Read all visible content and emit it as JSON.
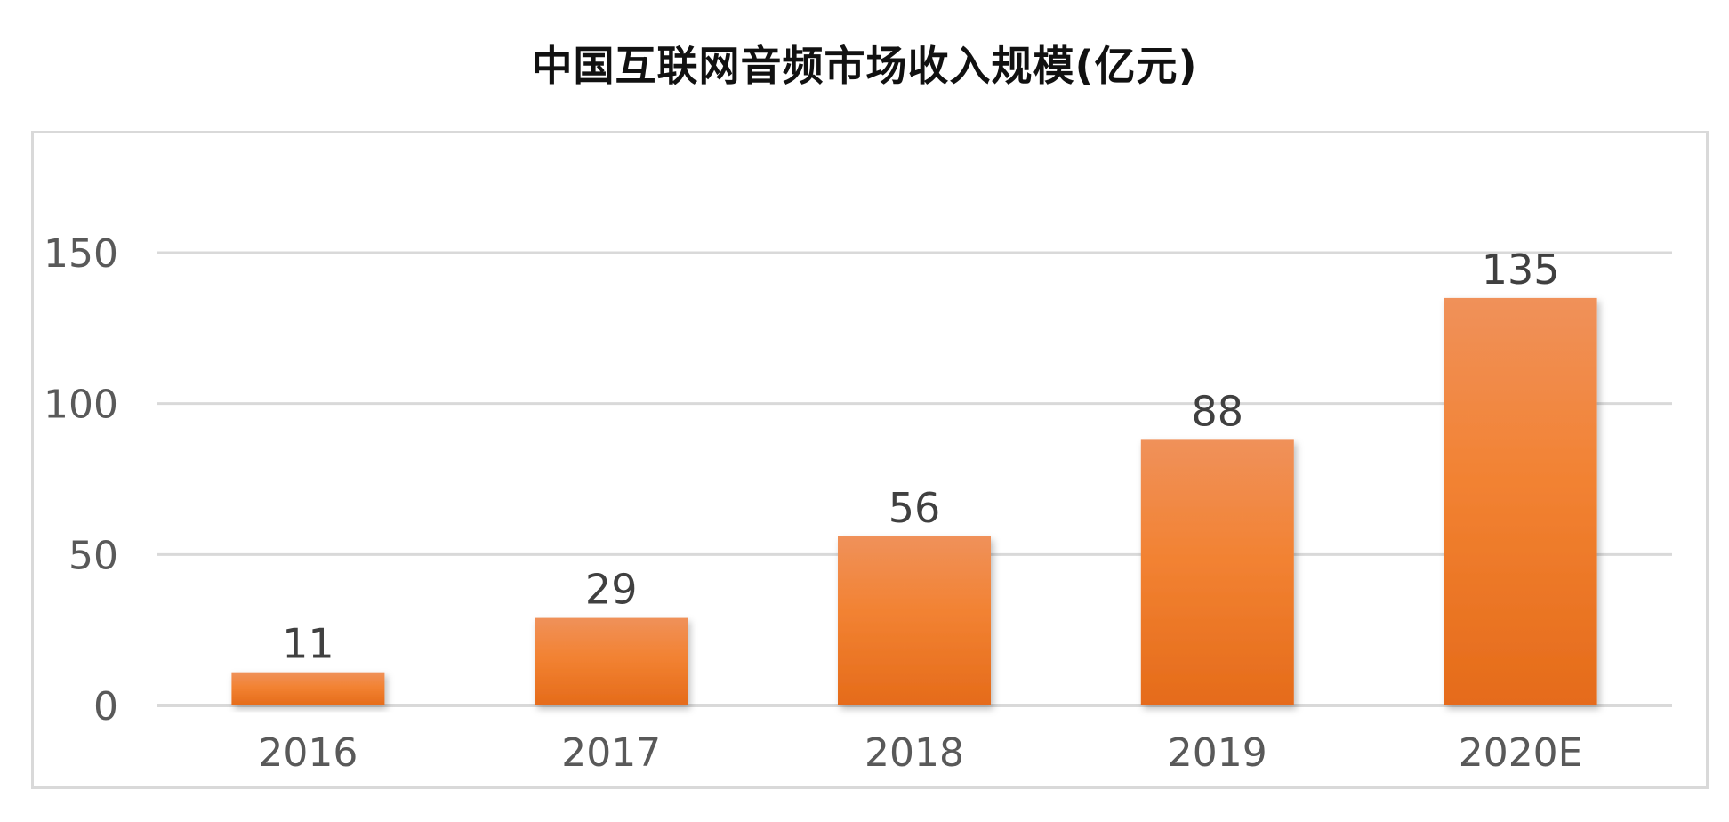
{
  "chart_data": {
    "type": "bar",
    "title": "中国互联网音频市场收入规模(亿元)",
    "xlabel": "",
    "ylabel": "",
    "categories": [
      "2016",
      "2017",
      "2018",
      "2019",
      "2020E"
    ],
    "values": [
      11,
      29,
      56,
      88,
      135
    ],
    "data_labels": [
      "11",
      "29",
      "56",
      "88",
      "135"
    ],
    "ylim": [
      0,
      150
    ],
    "yticks": [
      0,
      50,
      100,
      150
    ],
    "ytick_labels": [
      "0",
      "50",
      "100",
      "150"
    ],
    "grid": true,
    "legend": "none",
    "colors": {
      "bar_top": "#F0915A",
      "bar_mid": "#F28232",
      "bar_bottom": "#E56B1A",
      "grid": "#d9d9d9",
      "frame": "#d9d9d9",
      "text": "#595959"
    }
  }
}
